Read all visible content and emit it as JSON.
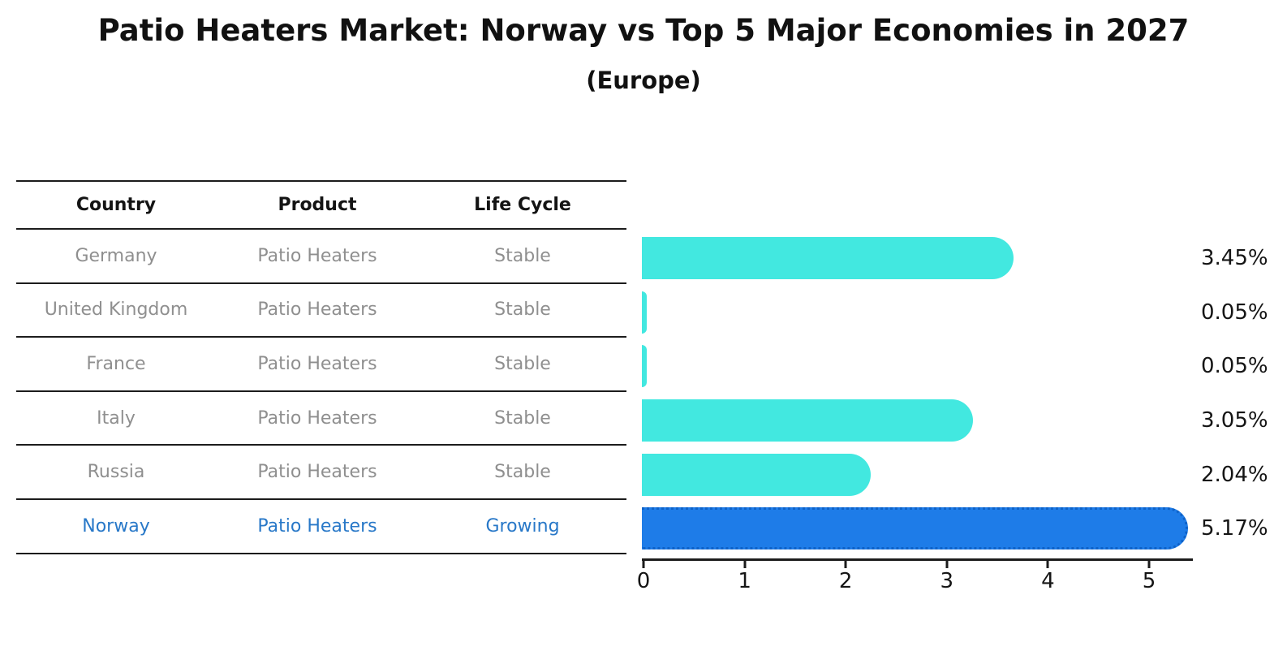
{
  "chart_data": {
    "type": "bar",
    "orientation": "horizontal",
    "title": "Patio Heaters Market: Norway vs Top 5 Major Economies in 2027",
    "subtitle": "(Europe)",
    "categories": [
      "Germany",
      "United Kingdom",
      "France",
      "Italy",
      "Russia",
      "Norway"
    ],
    "values": [
      3.45,
      0.05,
      0.05,
      3.05,
      2.04,
      5.17
    ],
    "value_labels": [
      "3.45%",
      "0.05%",
      "0.05%",
      "3.05%",
      "2.04%",
      "5.17%"
    ],
    "x_ticks": [
      "0",
      "1",
      "2",
      "3",
      "4",
      "5"
    ],
    "xlim": [
      0,
      5.4
    ],
    "grid": false,
    "legend": "none",
    "bar_color": "#42e8e0",
    "highlight_color": "#1e7ce8",
    "highlight_index": 5,
    "highlight_category": "Norway"
  },
  "table": {
    "headers": [
      "Country",
      "Product",
      "Life Cycle"
    ],
    "rows": [
      {
        "country": "Germany",
        "product": "Patio Heaters",
        "life_cycle": "Stable",
        "highlight": false
      },
      {
        "country": "United Kingdom",
        "product": "Patio Heaters",
        "life_cycle": "Stable",
        "highlight": false
      },
      {
        "country": "France",
        "product": "Patio Heaters",
        "life_cycle": "Stable",
        "highlight": false
      },
      {
        "country": "Italy",
        "product": "Patio Heaters",
        "life_cycle": "Stable",
        "highlight": false
      },
      {
        "country": "Russia",
        "product": "Patio Heaters",
        "life_cycle": "Stable",
        "highlight": false
      },
      {
        "country": "Norway",
        "product": "Patio Heaters",
        "life_cycle": "Growing",
        "highlight": true
      }
    ],
    "text_color": "#8f8f8f",
    "highlight_text_color": "#2878c8"
  }
}
